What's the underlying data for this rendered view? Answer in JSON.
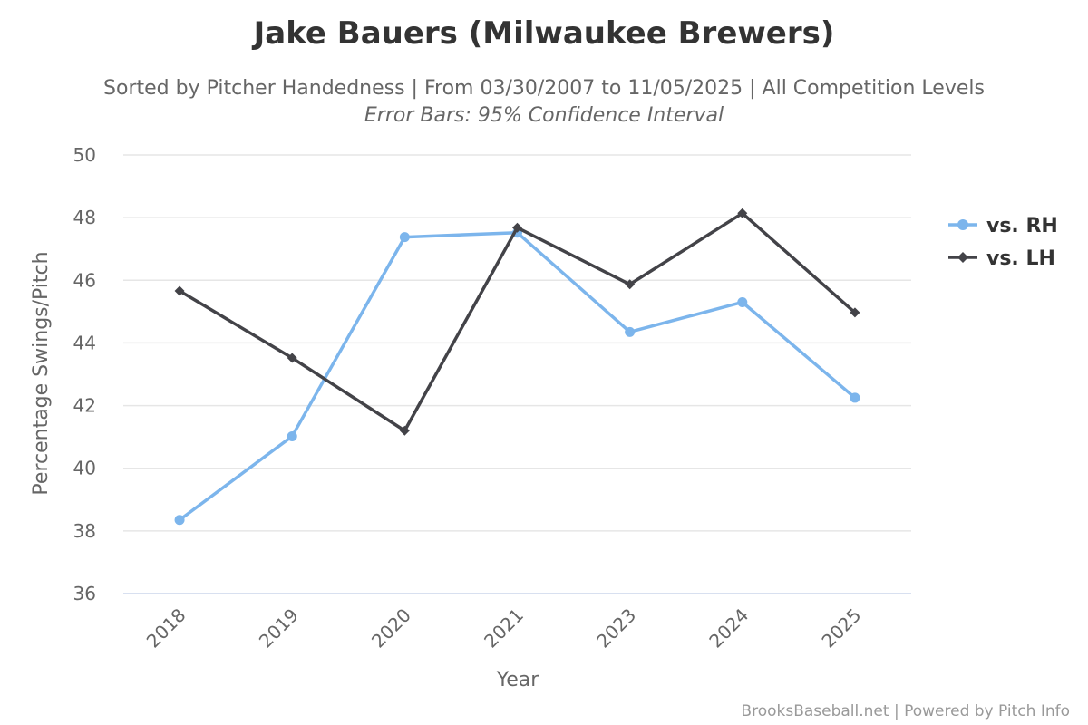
{
  "chart_data": {
    "type": "line",
    "title": "Jake Bauers (Milwaukee Brewers)",
    "subtitle": "Sorted by Pitcher Handedness | From 03/30/2007 to 11/05/2025 | All Competition Levels",
    "subtitle2": "Error Bars: 95% Confidence Interval",
    "xlabel": "Year",
    "ylabel": "Percentage Swings/Pitch",
    "categories": [
      "2018",
      "2019",
      "2020",
      "2021",
      "2023",
      "2024",
      "2025"
    ],
    "ylim": [
      36,
      50
    ],
    "yticks": [
      "36",
      "38",
      "40",
      "42",
      "44",
      "46",
      "48",
      "50"
    ],
    "grid": true,
    "legend_position": "right",
    "series": [
      {
        "name": "vs. RH",
        "color": "#7cb5ec",
        "marker": "circle",
        "values": [
          38.35,
          41.02,
          47.38,
          47.52,
          44.35,
          45.3,
          42.25
        ]
      },
      {
        "name": "vs. LH",
        "color": "#434348",
        "marker": "diamond",
        "values": [
          45.66,
          43.52,
          41.2,
          47.68,
          45.87,
          48.14,
          44.97
        ]
      }
    ],
    "credits": "BrooksBaseball.net | Powered by Pitch Info"
  }
}
